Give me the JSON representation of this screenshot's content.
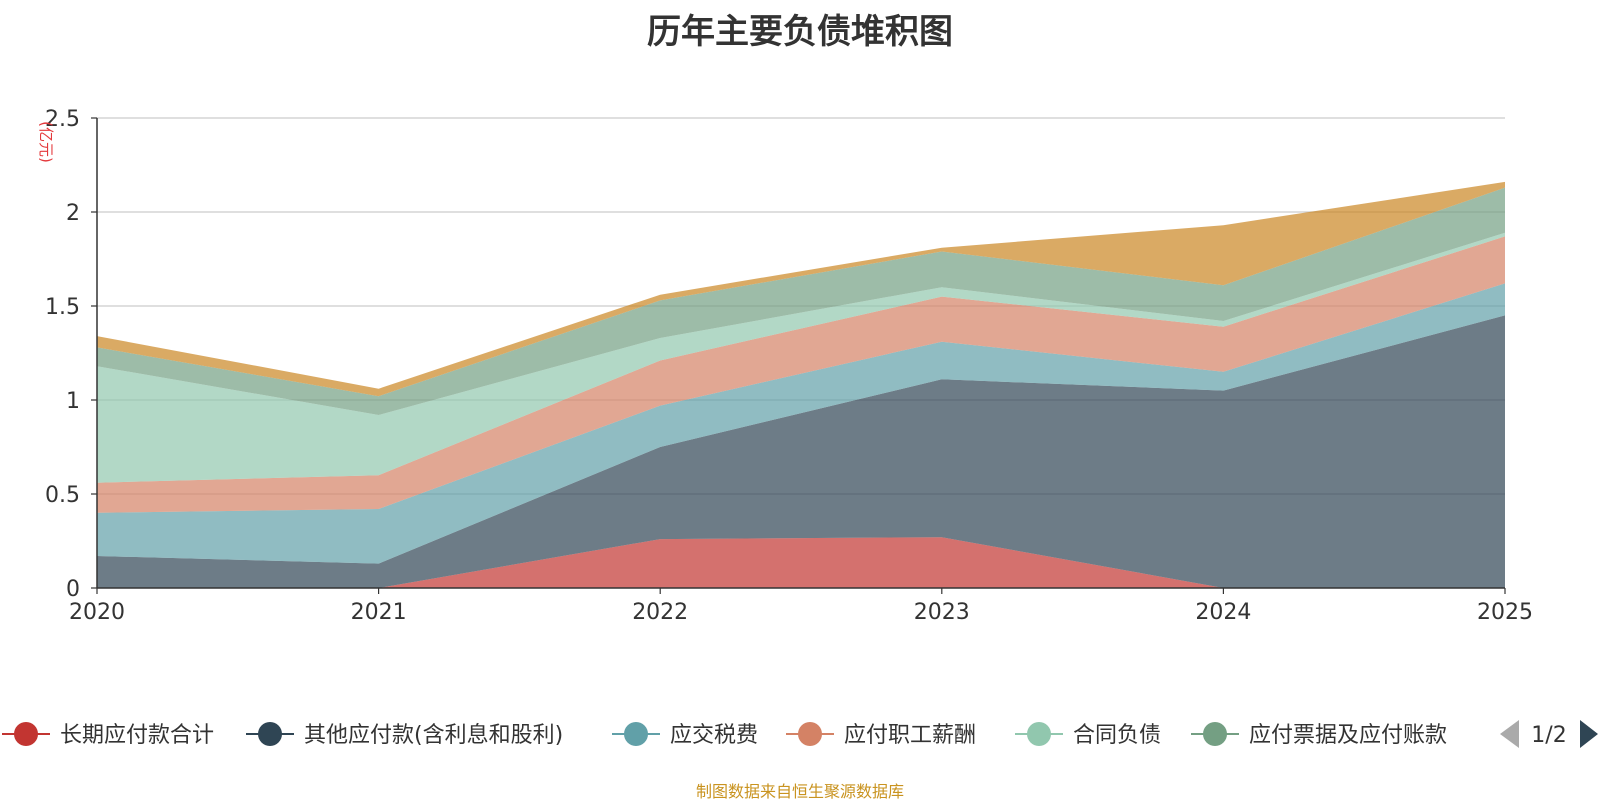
{
  "chart_data": {
    "type": "area",
    "stacked": true,
    "title": "历年主要负债堆积图",
    "ylabel": "(亿元)",
    "xlabel": "",
    "ylim": [
      0,
      2.5
    ],
    "yticks": [
      "0",
      "0.5",
      "1",
      "1.5",
      "2",
      "2.5"
    ],
    "x": [
      "2020",
      "2021",
      "2022",
      "2023",
      "2024",
      "2025"
    ],
    "grid": true,
    "series": [
      {
        "name": "长期应付款合计",
        "color": "#c23531",
        "values": [
          0,
          0,
          0.26,
          0.27,
          0,
          0
        ]
      },
      {
        "name": "其他应付款(含利息和股利)",
        "color": "#2f4554",
        "values": [
          0.17,
          0.13,
          0.49,
          0.84,
          1.05,
          1.45
        ]
      },
      {
        "name": "应交税费",
        "color": "#61a0a8",
        "values": [
          0.23,
          0.29,
          0.22,
          0.2,
          0.1,
          0.17
        ]
      },
      {
        "name": "应付职工薪酬",
        "color": "#d48265",
        "values": [
          0.16,
          0.18,
          0.24,
          0.24,
          0.24,
          0.25
        ]
      },
      {
        "name": "合同负债",
        "color": "#91c7ae",
        "values": [
          0.62,
          0.32,
          0.12,
          0.05,
          0.03,
          0.02
        ]
      },
      {
        "name": "应付票据及应付账款",
        "color": "#749f83",
        "values": [
          0.1,
          0.1,
          0.2,
          0.19,
          0.19,
          0.24
        ]
      },
      {
        "name": "",
        "color": "#ca8622",
        "values": [
          0.06,
          0.04,
          0.03,
          0.02,
          0.32,
          0.03
        ]
      }
    ],
    "legend": {
      "position": "bottom",
      "page": "1/2",
      "items": [
        "长期应付款合计",
        "其他应付款(含利息和股利)",
        "应交税费",
        "应付职工薪酬",
        "合同负债",
        "应付票据及应付账款"
      ]
    }
  },
  "footer": {
    "source": "制图数据来自恒生聚源数据库"
  }
}
